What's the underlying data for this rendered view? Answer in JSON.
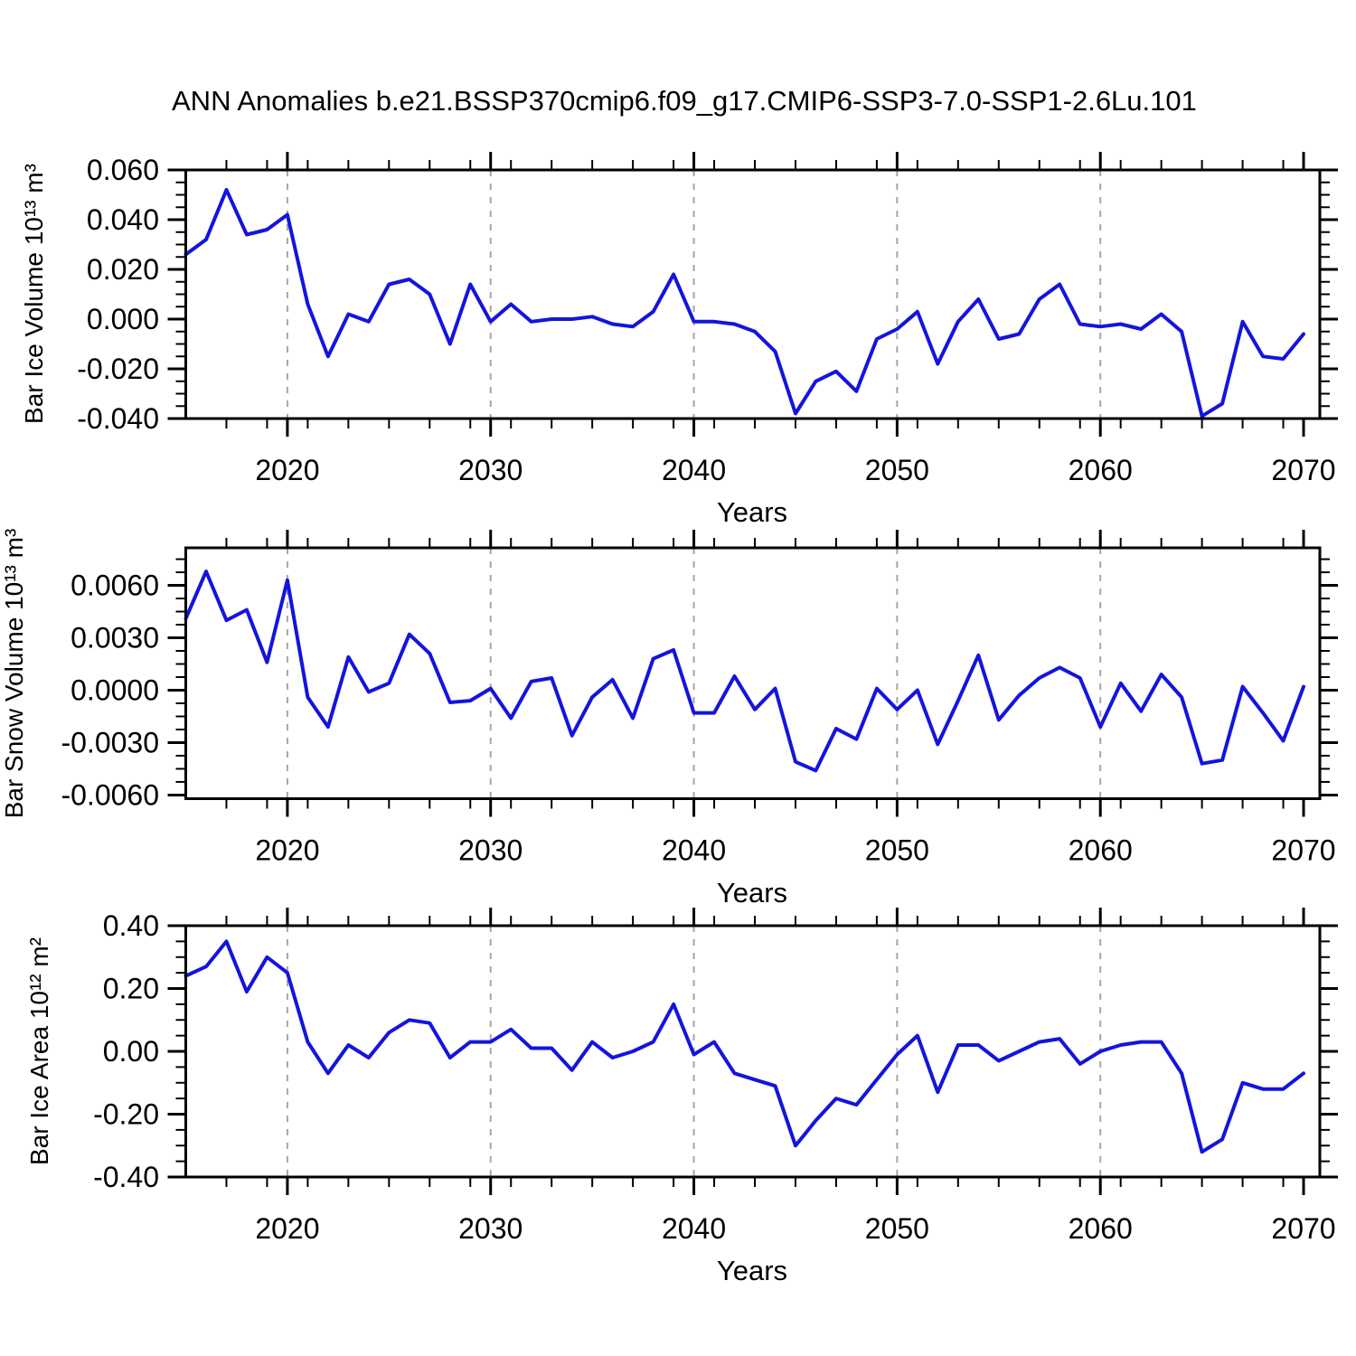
{
  "title": "ANN Anomalies b.e21.BSSP370cmip6.f09_g17.CMIP6-SSP3-7.0-SSP1-2.6Lu.101",
  "colors": {
    "line": "#1414dd",
    "grid": "#a6a6a6",
    "axis": "#000000",
    "background": "#ffffff",
    "text": "#000000"
  },
  "chart_data": {
    "type": "line",
    "x": [
      2015,
      2016,
      2017,
      2018,
      2019,
      2020,
      2021,
      2022,
      2023,
      2024,
      2025,
      2026,
      2027,
      2028,
      2029,
      2030,
      2031,
      2032,
      2033,
      2034,
      2035,
      2036,
      2037,
      2038,
      2039,
      2040,
      2041,
      2042,
      2043,
      2044,
      2045,
      2046,
      2047,
      2048,
      2049,
      2050,
      2051,
      2052,
      2053,
      2054,
      2055,
      2056,
      2057,
      2058,
      2059,
      2060,
      2061,
      2062,
      2063,
      2064,
      2065,
      2066,
      2067,
      2068,
      2069,
      2070
    ],
    "xlim": [
      2015,
      2070.8
    ],
    "x_ticks_major": [
      2020,
      2030,
      2040,
      2050,
      2060,
      2070
    ],
    "x_tick_major_labels": [
      "2020",
      "2030",
      "2040",
      "2050",
      "2060",
      "2070"
    ],
    "x_ticks_minor_step": 2,
    "grid_x": [
      2020,
      2030,
      2040,
      2050,
      2060
    ],
    "grid_style": "dashed",
    "legend": "none",
    "panels": [
      {
        "name": "bar-ice-volume",
        "ylabel": "Bar Ice Volume 10¹³ m³",
        "xlabel": "Years",
        "ylim": [
          -0.04,
          0.06
        ],
        "y_minor_step": 0.005,
        "yticks": [
          {
            "v": 0.06,
            "t": "0.060"
          },
          {
            "v": 0.04,
            "t": "0.040"
          },
          {
            "v": 0.02,
            "t": "0.020"
          },
          {
            "v": 0.0,
            "t": "0.000"
          },
          {
            "v": -0.02,
            "t": "-0.020"
          },
          {
            "v": -0.04,
            "t": "-0.040"
          }
        ],
        "values": [
          0.026,
          0.032,
          0.052,
          0.034,
          0.036,
          0.042,
          0.006,
          -0.015,
          0.002,
          -0.001,
          0.014,
          0.016,
          0.01,
          -0.01,
          0.014,
          -0.001,
          0.006,
          -0.001,
          0.0,
          0.0,
          0.001,
          -0.002,
          -0.003,
          0.003,
          0.018,
          -0.001,
          -0.001,
          -0.002,
          -0.005,
          -0.013,
          -0.038,
          -0.025,
          -0.021,
          -0.029,
          -0.008,
          -0.004,
          0.003,
          -0.018,
          -0.001,
          0.008,
          -0.008,
          -0.006,
          0.008,
          0.014,
          -0.002,
          -0.003,
          -0.002,
          -0.004,
          0.002,
          -0.005,
          -0.039,
          -0.034,
          -0.001,
          -0.015,
          -0.016,
          -0.006
        ]
      },
      {
        "name": "bar-snow-volume",
        "ylabel": "Bar Snow Volume 10¹³ m³",
        "xlabel": "Years",
        "ylim": [
          -0.00621,
          0.00815
        ],
        "y_minor_step": 0.00075,
        "yticks": [
          {
            "v": 0.006,
            "t": "0.0060"
          },
          {
            "v": 0.003,
            "t": "0.0030"
          },
          {
            "v": 0.0,
            "t": "0.0000"
          },
          {
            "v": -0.003,
            "t": "-0.0030"
          },
          {
            "v": -0.006,
            "t": "-0.0060"
          }
        ],
        "values": [
          0.0041,
          0.0068,
          0.004,
          0.0046,
          0.0016,
          0.0063,
          -0.0004,
          -0.0021,
          0.0019,
          -0.0001,
          0.0004,
          0.0032,
          0.0021,
          -0.0007,
          -0.0006,
          0.0001,
          -0.0016,
          0.0005,
          0.0007,
          -0.0026,
          -0.0004,
          0.0006,
          -0.0016,
          0.0018,
          0.0023,
          -0.0013,
          -0.0013,
          0.0008,
          -0.0011,
          0.0001,
          -0.0041,
          -0.0046,
          -0.0022,
          -0.0028,
          0.0001,
          -0.0011,
          0.0,
          -0.0031,
          -0.0006,
          0.002,
          -0.0017,
          -0.0003,
          0.0007,
          0.0013,
          0.0007,
          -0.0021,
          0.0004,
          -0.0012,
          0.0009,
          -0.0004,
          -0.0042,
          -0.004,
          0.0002,
          -0.0013,
          -0.0029,
          0.0002
        ]
      },
      {
        "name": "bar-ice-area",
        "ylabel": "Bar Ice Area 10¹² m²",
        "xlabel": "Years",
        "ylim": [
          -0.4,
          0.4
        ],
        "y_minor_step": 0.05,
        "yticks": [
          {
            "v": 0.4,
            "t": "0.40"
          },
          {
            "v": 0.2,
            "t": "0.20"
          },
          {
            "v": 0.0,
            "t": "0.00"
          },
          {
            "v": -0.2,
            "t": "-0.20"
          },
          {
            "v": -0.4,
            "t": "-0.40"
          }
        ],
        "values": [
          0.24,
          0.27,
          0.35,
          0.19,
          0.3,
          0.25,
          0.03,
          -0.07,
          0.02,
          -0.02,
          0.06,
          0.1,
          0.09,
          -0.02,
          0.03,
          0.03,
          0.07,
          0.01,
          0.01,
          -0.06,
          0.03,
          -0.02,
          0.0,
          0.03,
          0.15,
          -0.01,
          0.03,
          -0.07,
          -0.09,
          -0.11,
          -0.3,
          -0.22,
          -0.15,
          -0.17,
          -0.09,
          -0.01,
          0.05,
          -0.13,
          0.02,
          0.02,
          -0.03,
          0.0,
          0.03,
          0.04,
          -0.04,
          0.0,
          0.02,
          0.03,
          0.03,
          -0.07,
          -0.32,
          -0.28,
          -0.1,
          -0.12,
          -0.12,
          -0.07
        ]
      }
    ]
  }
}
